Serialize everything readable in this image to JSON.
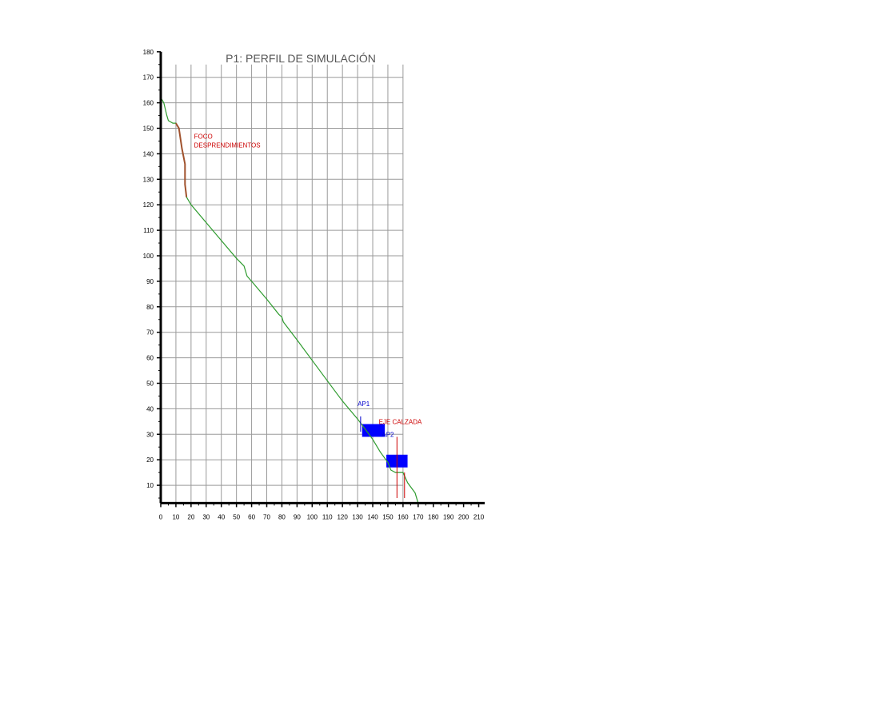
{
  "chart_data": {
    "type": "line",
    "title": "P1: PERFIL DE SIMULACIÓN",
    "xlabel": "",
    "ylabel": "",
    "xlim": [
      0,
      215
    ],
    "ylim": [
      3,
      180
    ],
    "x_ticks": [
      0,
      10,
      20,
      30,
      40,
      50,
      60,
      70,
      80,
      90,
      100,
      110,
      120,
      130,
      140,
      150,
      160,
      170,
      180,
      190,
      200,
      210
    ],
    "y_ticks": [
      10,
      20,
      30,
      40,
      50,
      60,
      70,
      80,
      90,
      100,
      110,
      120,
      130,
      140,
      150,
      160,
      170,
      180
    ],
    "grid": true,
    "grid_x_max": 160,
    "colors": {
      "profile": "#2e9b2e",
      "source_zone": "#a0522d",
      "road_axis": "#cc0000",
      "blocks": "#0000ff",
      "grid": "#9a9a9a",
      "axis": "#000000"
    },
    "series": [
      {
        "points": [
          [
            0,
            162
          ],
          [
            2,
            160
          ],
          [
            4,
            155
          ],
          [
            5,
            153
          ],
          [
            8,
            152
          ],
          [
            10,
            152
          ],
          [
            12,
            150
          ],
          [
            13,
            146
          ],
          [
            14,
            142
          ],
          [
            16,
            136
          ],
          [
            16,
            128
          ],
          [
            17,
            123
          ],
          [
            18,
            122
          ],
          [
            20,
            120
          ],
          [
            30,
            113
          ],
          [
            40,
            106
          ],
          [
            50,
            99
          ],
          [
            55,
            96
          ],
          [
            57,
            92
          ],
          [
            60,
            90
          ],
          [
            70,
            83
          ],
          [
            78,
            77
          ],
          [
            80,
            76
          ],
          [
            81,
            74
          ],
          [
            90,
            67
          ],
          [
            100,
            59
          ],
          [
            110,
            51
          ],
          [
            120,
            43
          ],
          [
            130,
            36
          ],
          [
            135,
            32
          ],
          [
            140,
            28
          ],
          [
            145,
            23
          ],
          [
            150,
            19
          ],
          [
            152,
            16
          ],
          [
            155,
            15
          ],
          [
            160,
            15
          ],
          [
            163,
            11
          ],
          [
            168,
            7
          ],
          [
            170,
            3
          ]
        ]
      },
      {
        "points": [
          [
            10,
            152
          ],
          [
            12,
            150
          ],
          [
            13,
            146
          ],
          [
            14,
            142
          ],
          [
            16,
            136
          ],
          [
            16,
            128
          ],
          [
            17,
            123
          ]
        ]
      }
    ],
    "blocks": [
      {
        "x": [
          133,
          148
        ],
        "y": [
          29,
          34
        ]
      },
      {
        "x": [
          149,
          163
        ],
        "y": [
          17,
          22
        ]
      }
    ],
    "markers": [
      {
        "x": 132,
        "y": [
          31,
          37
        ],
        "color": "#0000cc"
      },
      {
        "x": 156,
        "y": [
          5,
          29
        ],
        "color": "#cc0000"
      }
    ],
    "annotations": [
      {
        "lines": [
          "FOCO",
          "DESPRENDIMIENTOS"
        ],
        "x": 22,
        "y": 146,
        "color": "#cc0000"
      },
      {
        "lines": [
          "AP1"
        ],
        "x": 130,
        "y": 41,
        "color": "#0000cc"
      },
      {
        "lines": [
          "EJE CALZADA"
        ],
        "x": 144,
        "y": 34,
        "color": "#cc0000"
      },
      {
        "lines": [
          "AP2"
        ],
        "x": 146,
        "y": 29,
        "color": "#0000cc"
      }
    ]
  }
}
